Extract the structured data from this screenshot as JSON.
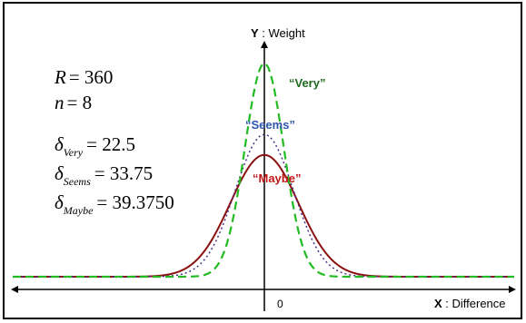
{
  "chart_data": {
    "type": "line",
    "x_axis_label": {
      "prefix": "X",
      "rest": " : Difference"
    },
    "y_axis_label": {
      "prefix": "Y",
      "rest": " : Weight"
    },
    "x_tick_label": "0",
    "params": {
      "R": {
        "symbol": "R",
        "value": "360"
      },
      "n": {
        "symbol": "n",
        "value": "8"
      },
      "deltas": [
        {
          "symbol": "δ",
          "sub": "Very",
          "value": "22.5"
        },
        {
          "symbol": "δ",
          "sub": "Seems",
          "value": "33.75"
        },
        {
          "symbol": "δ",
          "sub": "Maybe",
          "value": "39.3750"
        }
      ]
    },
    "series": [
      {
        "name": "“Very”",
        "sigma": 22.5,
        "peak": 1.0,
        "color": "#22bb22",
        "style": "dashed"
      },
      {
        "name": "“Seems”",
        "sigma": 33.75,
        "peak": 0.667,
        "color": "#4d2f88",
        "style": "dotted"
      },
      {
        "name": "“Maybe”",
        "sigma": 39.375,
        "peak": 0.571,
        "color": "#8b1010",
        "style": "solid"
      }
    ],
    "series_label_colors": {
      "“Very”": "#1f6a1f",
      "“Seems”": "#2d55b0",
      "“Maybe”": "#c01818"
    },
    "xlim": [
      -180,
      180
    ],
    "grid": false,
    "legend": "inline labels"
  }
}
